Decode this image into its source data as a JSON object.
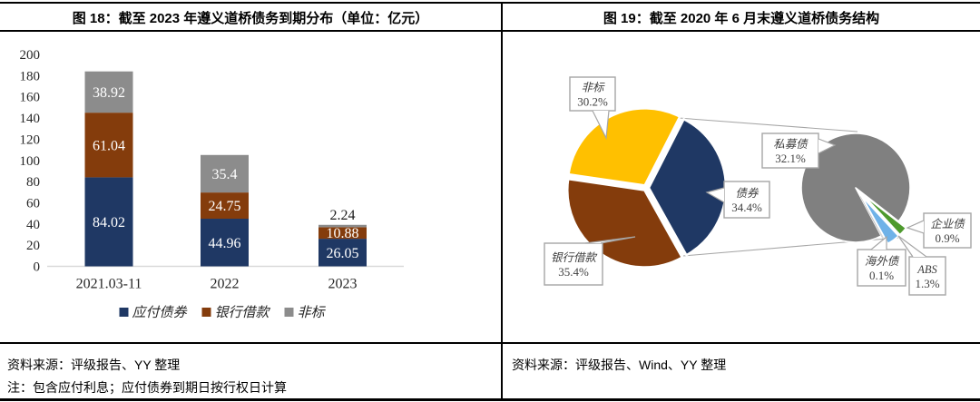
{
  "figure_left": {
    "title": "图 18：截至 2023 年遵义道桥债务到期分布（单位：亿元）",
    "source": "资料来源：评级报告、YY 整理",
    "note": "注：包含应付利息；应付债券到期日按行权日计算"
  },
  "figure_right": {
    "title": "图 19：截至 2020 年 6 月末遵义道桥债务结构",
    "source": "资料来源：评级报告、Wind、YY 整理"
  },
  "chart_data": [
    {
      "type": "bar",
      "stacked": true,
      "title": "截至 2023 年遵义道桥债务到期分布",
      "unit": "亿元",
      "categories": [
        "2021.03-11",
        "2022",
        "2023"
      ],
      "series": [
        {
          "name": "应付债券",
          "color": "#1F3864",
          "values": [
            84.02,
            44.96,
            26.05
          ]
        },
        {
          "name": "银行借款",
          "color": "#843C0C",
          "values": [
            61.04,
            24.75,
            10.88
          ]
        },
        {
          "name": "非标",
          "color": "#8C8C8C",
          "values": [
            38.92,
            35.4,
            2.24
          ]
        }
      ],
      "ylim": [
        0,
        200
      ],
      "ytick_step": 20,
      "gridlines": false,
      "legend_position": "bottom",
      "value_labels": true
    },
    {
      "type": "pie",
      "variant": "pie-of-pie",
      "title": "截至 2020 年 6 月末遵义道桥债务结构",
      "main_pie": {
        "start_angle_deg": 27,
        "slices": [
          {
            "label": "债券",
            "value": 34.4,
            "display": "34.4%",
            "color": "#1F3864"
          },
          {
            "label": "银行借款",
            "value": 35.4,
            "display": "35.4%",
            "color": "#843C0C"
          },
          {
            "label": "非标",
            "value": 30.2,
            "display": "30.2%",
            "color": "#FFC000"
          }
        ]
      },
      "secondary_pie": {
        "parent": "债券",
        "start_angle_deg": 152,
        "slices": [
          {
            "label": "私募债",
            "value": 32.1,
            "display": "32.1%",
            "color": "#808080"
          },
          {
            "label": "企业债",
            "value": 0.9,
            "display": "0.9%",
            "color": "#4E9A2E"
          },
          {
            "label": "ABS",
            "value": 1.3,
            "display": "1.3%",
            "color": "#6FB2E8"
          },
          {
            "label": "海外债",
            "value": 0.1,
            "display": "0.1%",
            "color": "#FFFFFF"
          }
        ]
      }
    }
  ]
}
